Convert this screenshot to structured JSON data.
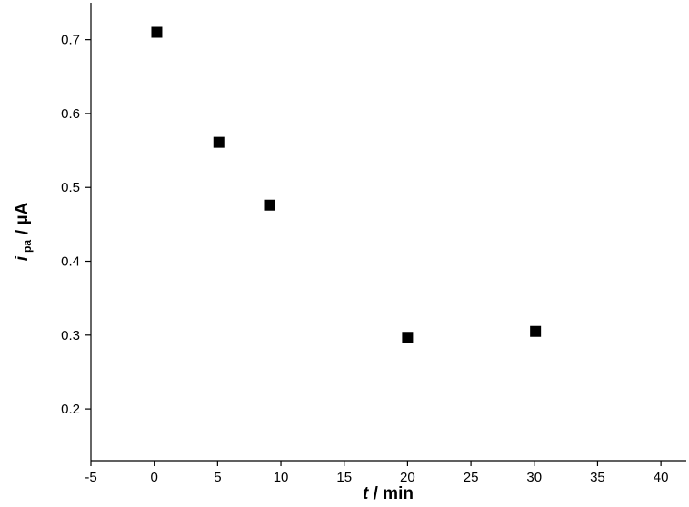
{
  "chart_data": {
    "type": "scatter",
    "xlabel": {
      "symbol": "t",
      "unit": "/ min"
    },
    "ylabel": {
      "symbol": "i",
      "subscript": "pa",
      "unit": "/ µA"
    },
    "x": [
      0.2,
      5.1,
      9.1,
      20,
      30.1
    ],
    "values": [
      0.71,
      0.561,
      0.476,
      0.297,
      0.305
    ],
    "color": "#000000",
    "xlim": [
      -5,
      42
    ],
    "xticks": [
      -5,
      0,
      5,
      10,
      15,
      20,
      25,
      30,
      35,
      40
    ],
    "ylim": [
      0.13,
      0.75
    ],
    "yticks": [
      0.2,
      0.3,
      0.4,
      0.5,
      0.6,
      0.7
    ],
    "grid": false
  }
}
